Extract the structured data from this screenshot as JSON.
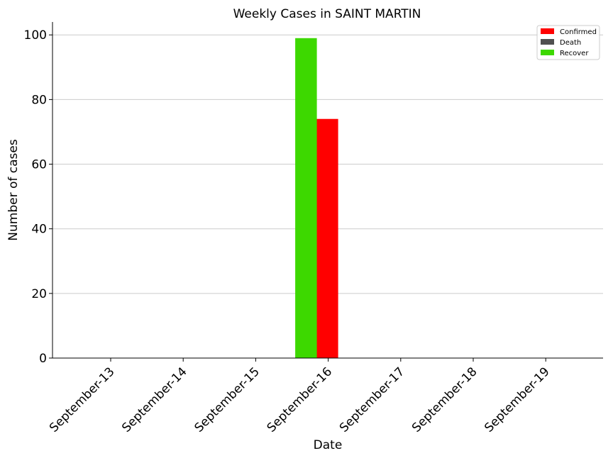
{
  "chart_data": {
    "type": "bar",
    "title": "Weekly Cases in SAINT MARTIN",
    "xlabel": "Date",
    "ylabel": "Number of cases",
    "categories": [
      "September-13",
      "September-14",
      "September-15",
      "September-16",
      "September-17",
      "September-18",
      "September-19"
    ],
    "series": [
      {
        "name": "Confirmed",
        "color": "#ff0000",
        "values": [
          0,
          0,
          0,
          74,
          0,
          0,
          0
        ]
      },
      {
        "name": "Death",
        "color": "#505050",
        "values": [
          0,
          0,
          0,
          0,
          0,
          0,
          0
        ]
      },
      {
        "name": "Recover",
        "color": "#3dd800",
        "values": [
          0,
          0,
          0,
          99,
          0,
          0,
          0
        ]
      }
    ],
    "ylim": [
      0,
      104
    ],
    "yticks": [
      0,
      20,
      40,
      60,
      80,
      100
    ],
    "grid": "horizontal",
    "legend": "top-right"
  }
}
